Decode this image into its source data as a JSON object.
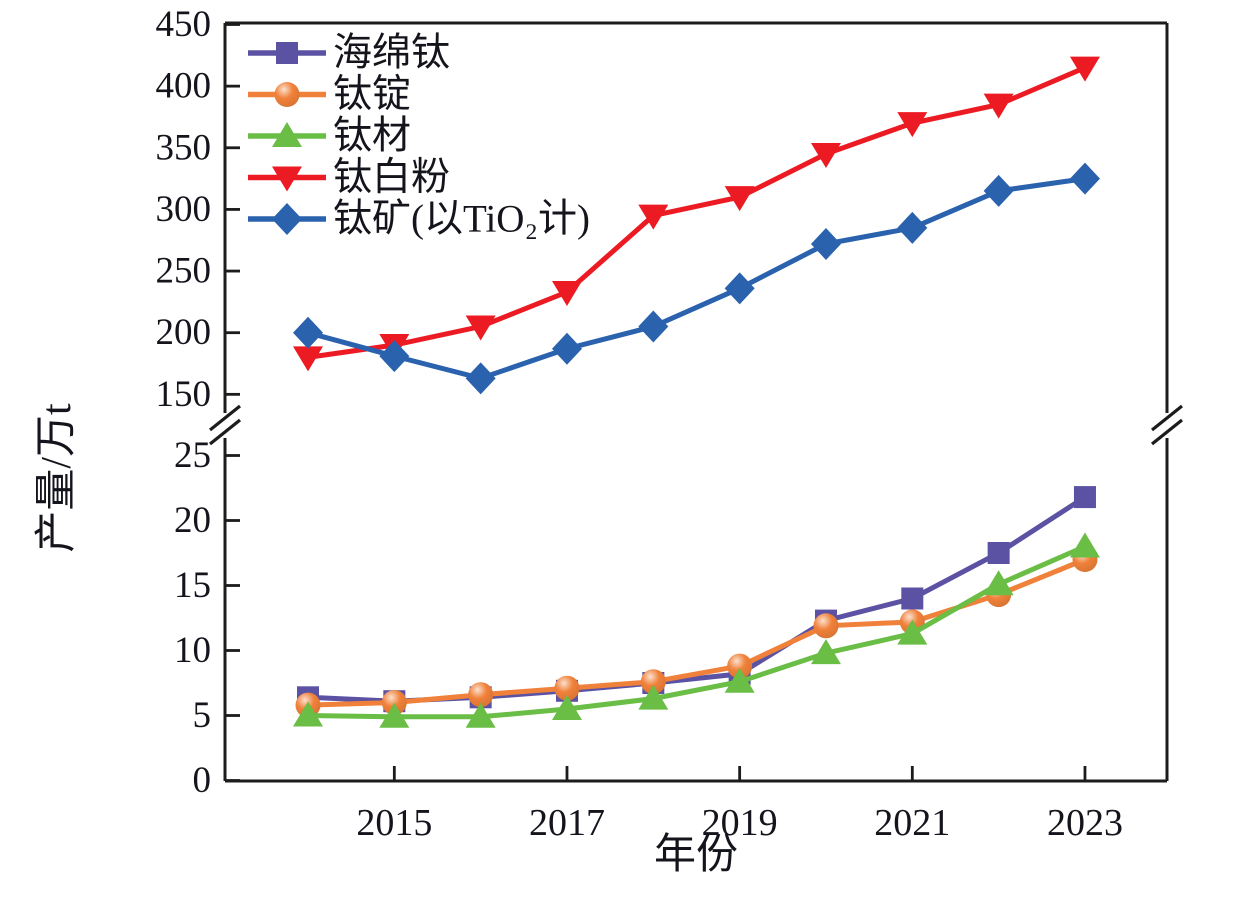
{
  "chart_data": {
    "type": "line",
    "title": "",
    "xlabel": "年份",
    "ylabel": "产量/万t",
    "x": [
      2014,
      2015,
      2016,
      2017,
      2018,
      2019,
      2020,
      2021,
      2022,
      2023
    ],
    "x_ticks": [
      2015,
      2017,
      2019,
      2021,
      2023
    ],
    "axis_break": true,
    "upper_axis": {
      "range": [
        135,
        452
      ],
      "ticks": [
        150,
        200,
        250,
        300,
        350,
        400,
        450
      ]
    },
    "lower_axis": {
      "range": [
        0,
        26.5
      ],
      "ticks": [
        0,
        5,
        10,
        15,
        20,
        25
      ]
    },
    "grid": false,
    "legend_position": "top-left-inside",
    "colors": {
      "axis": "#1c1c1c",
      "text": "#14141c",
      "background": "#ffffff"
    },
    "series": [
      {
        "id": "titanium-sponge",
        "name": "海绵钛",
        "color": "#5b52a3",
        "marker": "square",
        "panel": "lower",
        "values": [
          6.4,
          6.1,
          6.4,
          6.9,
          7.5,
          8.2,
          12.3,
          14.0,
          17.5,
          21.8
        ]
      },
      {
        "id": "titanium-ingot",
        "name": "钛锭",
        "color": "#f0813a",
        "marker": "circle",
        "panel": "lower",
        "values": [
          5.8,
          6.0,
          6.6,
          7.1,
          7.6,
          8.8,
          11.9,
          12.2,
          14.3,
          17.0
        ]
      },
      {
        "id": "titanium-mill-products",
        "name": "钛材",
        "color": "#6abd45",
        "marker": "triangle-up",
        "panel": "lower",
        "values": [
          5.0,
          4.9,
          4.9,
          5.5,
          6.3,
          7.6,
          9.8,
          11.3,
          15.1,
          18.0
        ]
      },
      {
        "id": "titanium-dioxide",
        "name": "钛白粉",
        "color": "#ec1b23",
        "marker": "triangle-down",
        "panel": "upper",
        "values": [
          180,
          190,
          205,
          233,
          295,
          310,
          345,
          370,
          385,
          415
        ]
      },
      {
        "id": "titanium-ore",
        "name": "钛矿(以TiO₂计)",
        "color": "#2b62ae",
        "marker": "diamond",
        "panel": "upper",
        "values": [
          200,
          181,
          163,
          187,
          205,
          236,
          272,
          285,
          315,
          325
        ]
      }
    ]
  }
}
